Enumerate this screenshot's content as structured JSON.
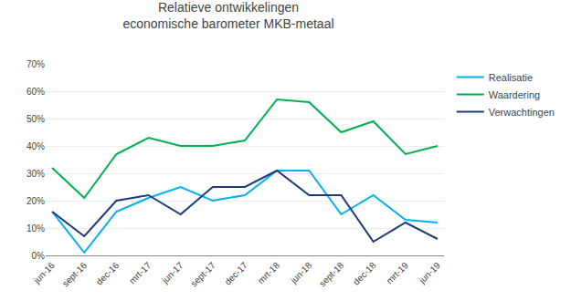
{
  "chart_data": {
    "type": "line",
    "title": "Relatieve ontwikkelingen\neconomische barometer MKB-metaal",
    "categories": [
      "jun-16",
      "sept-16",
      "dec-16",
      "mrt-17",
      "jun-17",
      "sept-17",
      "dec-17",
      "mrt-18",
      "jun-18",
      "sept-18",
      "dec-18",
      "mrt-19",
      "jun-19"
    ],
    "series": [
      {
        "name": "Realisatie",
        "color": "#00B0F0",
        "values": [
          16,
          1,
          16,
          21,
          25,
          20,
          22,
          31,
          31,
          15,
          22,
          13,
          12
        ]
      },
      {
        "name": "Waardering",
        "color": "#00B050",
        "values": [
          32,
          21,
          37,
          43,
          40,
          40,
          42,
          57,
          56,
          45,
          49,
          37,
          40
        ]
      },
      {
        "name": "Verwachtingen",
        "color": "#1F3A7A",
        "values": [
          16,
          7,
          20,
          22,
          15,
          25,
          25,
          31,
          22,
          22,
          5,
          12,
          6
        ]
      }
    ],
    "ylim": [
      0,
      70
    ],
    "yticks": [
      {
        "value": 0,
        "label": "0%"
      },
      {
        "value": 10,
        "label": "10%"
      },
      {
        "value": 20,
        "label": "20%"
      },
      {
        "value": 30,
        "label": "30%"
      },
      {
        "value": 40,
        "label": "40%"
      },
      {
        "value": 50,
        "label": "50%"
      },
      {
        "value": 60,
        "label": "60%"
      },
      {
        "value": 70,
        "label": "70%"
      }
    ],
    "grid": true,
    "legend": "right"
  }
}
